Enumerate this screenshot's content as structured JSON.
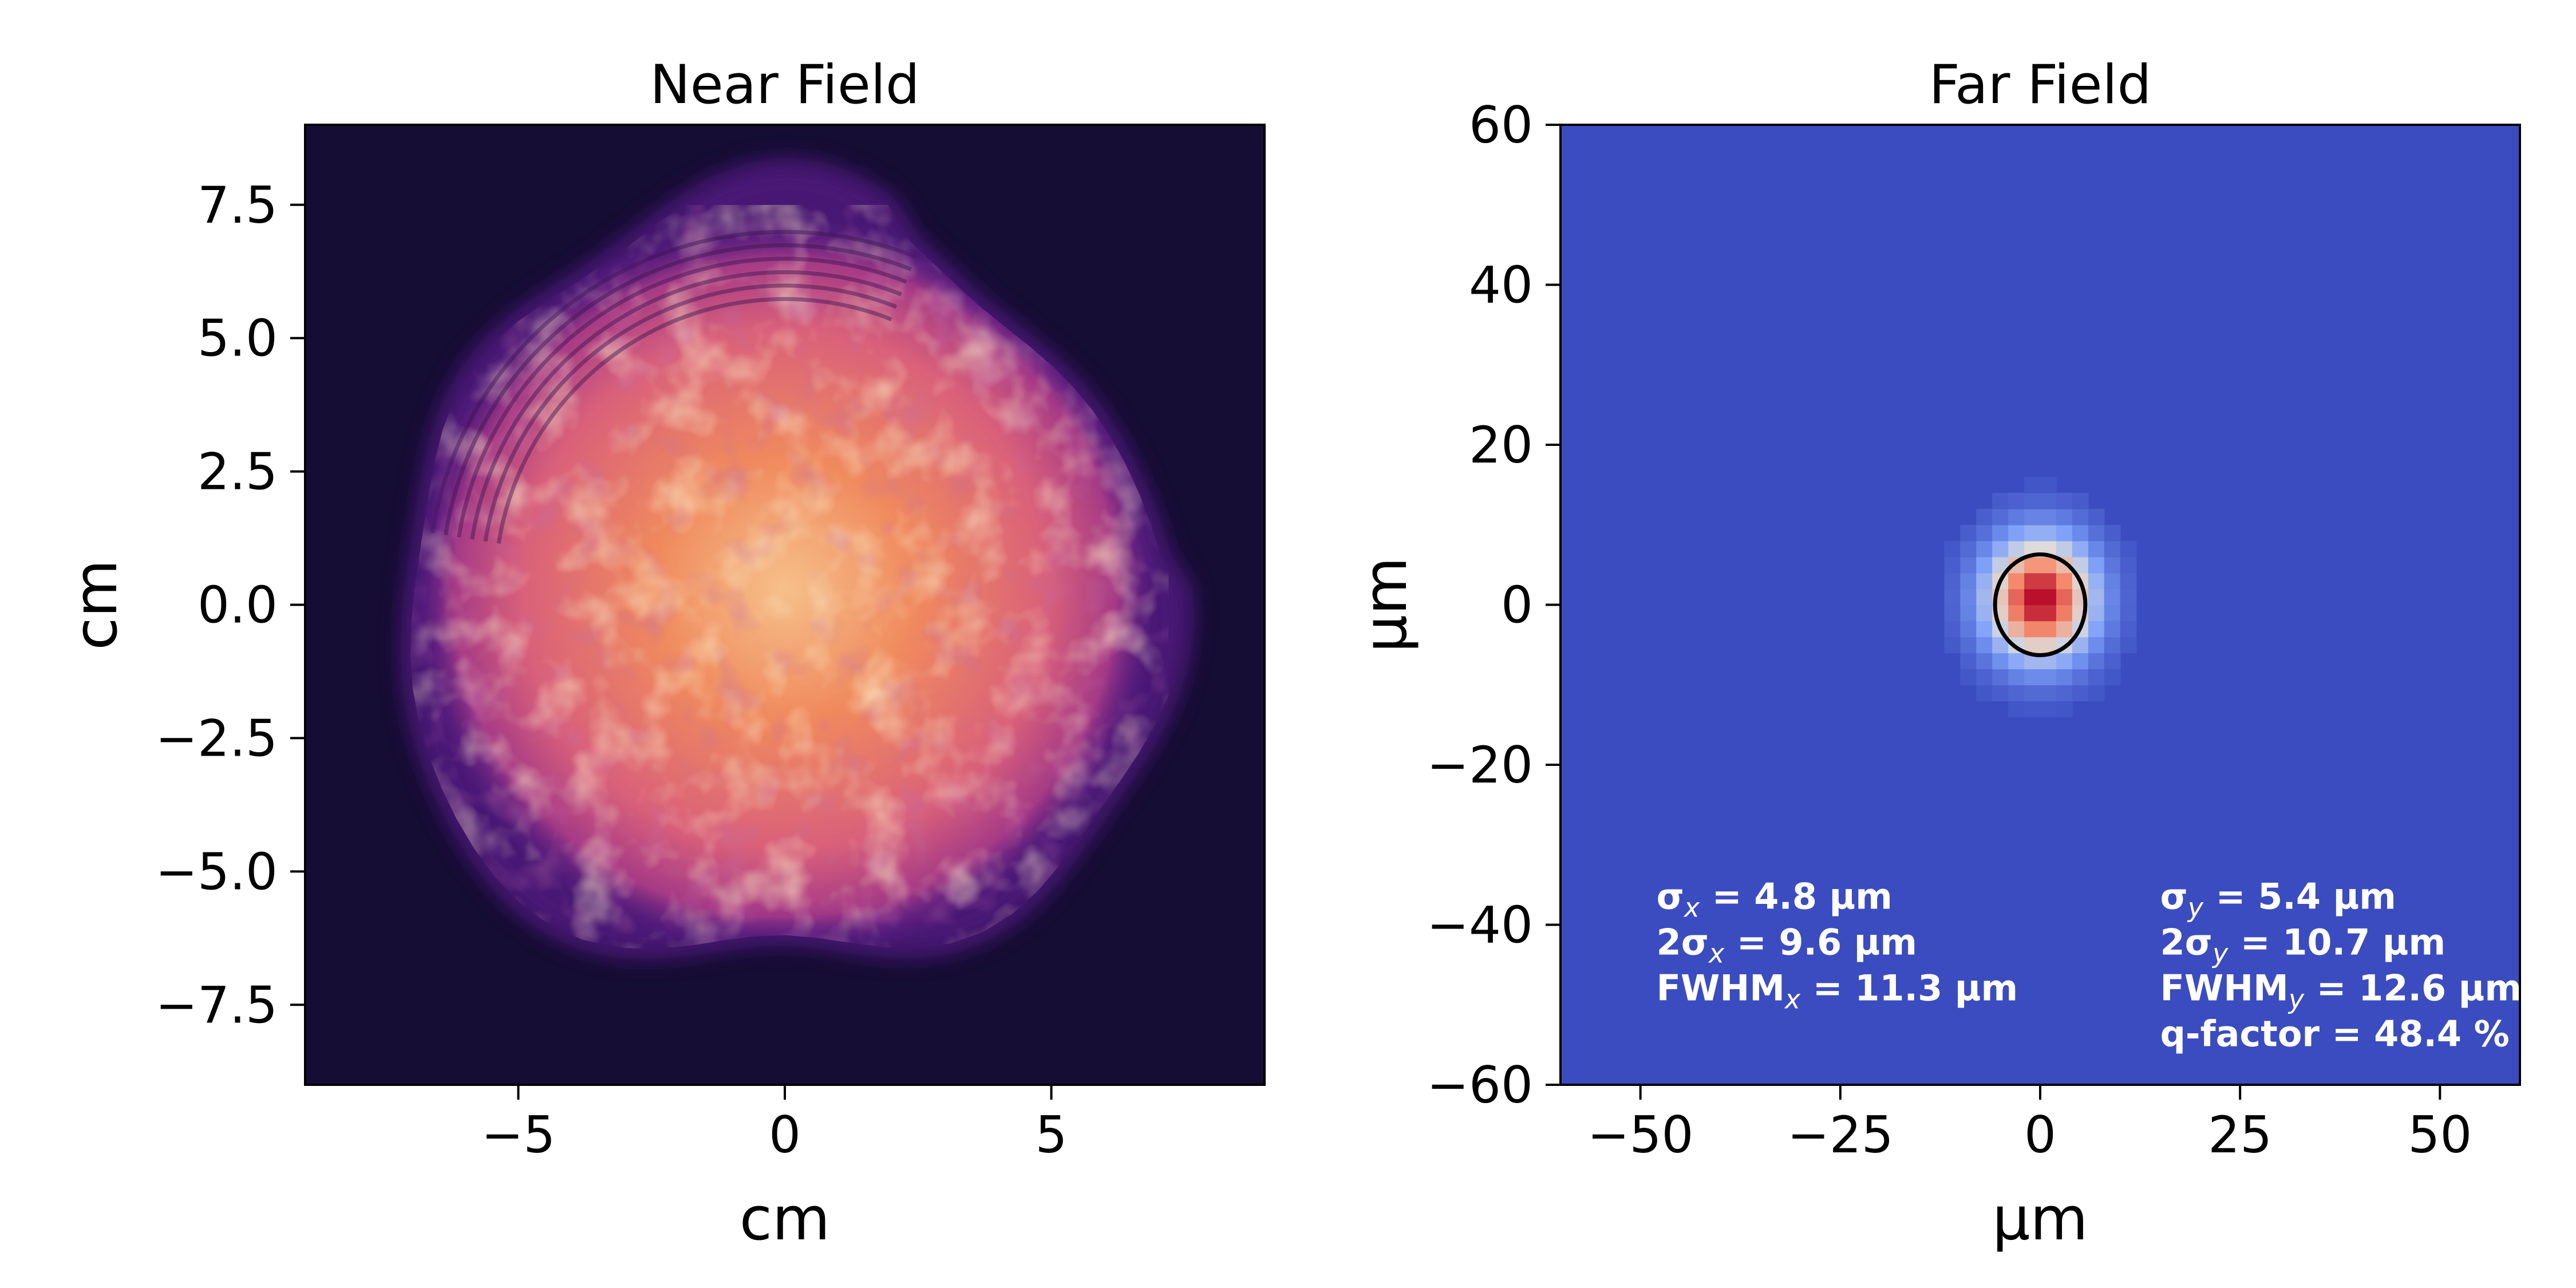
{
  "chart_data": [
    {
      "type": "heatmap",
      "title": "Near Field",
      "xlabel": "cm",
      "ylabel": "cm",
      "xlim": [
        -9,
        9
      ],
      "ylim": [
        -9,
        9
      ],
      "x_ticks": [
        -5,
        0,
        5
      ],
      "x_tick_labels": [
        "−5",
        "0",
        "5"
      ],
      "y_ticks": [
        -7.5,
        -5.0,
        -2.5,
        0.0,
        2.5,
        5.0,
        7.5
      ],
      "y_tick_labels": [
        "−7.5",
        "−5.0",
        "−2.5",
        "0.0",
        "2.5",
        "5.0",
        "7.5"
      ],
      "colormap": "magma",
      "background_color": "#150d33",
      "beam": {
        "shape": "roughly circular beam with concentric diffraction rings on upper-left edge",
        "center": [
          0.0,
          0.3
        ],
        "radius": 7.2,
        "edge_color": "#5a1d8a",
        "mid_color": "#c24b7a",
        "core_color": "#f08a5e",
        "hot_color": "#f6c08a"
      }
    },
    {
      "type": "heatmap",
      "title": "Far Field",
      "xlabel": "µm",
      "ylabel": "µm",
      "xlim": [
        -60,
        60
      ],
      "ylim": [
        -60,
        60
      ],
      "x_ticks": [
        -50,
        -25,
        0,
        25,
        50
      ],
      "x_tick_labels": [
        "−50",
        "−25",
        "0",
        "25",
        "50"
      ],
      "y_ticks": [
        -60,
        -40,
        -20,
        0,
        20,
        40,
        60
      ],
      "y_tick_labels": [
        "−60",
        "−40",
        "−20",
        "0",
        "20",
        "40",
        "60"
      ],
      "colormap": "coolwarm",
      "background_color": "#3b4cc0",
      "spot": {
        "center": [
          0.0,
          0.8
        ],
        "sigma_x": 4.8,
        "sigma_y": 5.4,
        "pixel_size": 2.0
      },
      "fwhm_ellipse": {
        "center": [
          0.0,
          0.0
        ],
        "width": 11.3,
        "height": 12.6,
        "color": "#000000"
      },
      "annotations_left": [
        {
          "prefix": "σ",
          "sub": "x",
          "rest": " = 4.8 µm"
        },
        {
          "prefix": "2σ",
          "sub": "x",
          "rest": " = 9.6 µm"
        },
        {
          "prefix": "FWHM",
          "sub": "x",
          "rest": " = 11.3 µm"
        }
      ],
      "annotations_right": [
        {
          "prefix": "σ",
          "sub": "y",
          "rest": " = 5.4 µm"
        },
        {
          "prefix": "2σ",
          "sub": "y",
          "rest": " = 10.7 µm"
        },
        {
          "prefix": "FWHM",
          "sub": "y",
          "rest": " = 12.6 µm"
        },
        {
          "prefix": "q-factor = 48.4 %",
          "sub": "",
          "rest": ""
        }
      ]
    }
  ]
}
